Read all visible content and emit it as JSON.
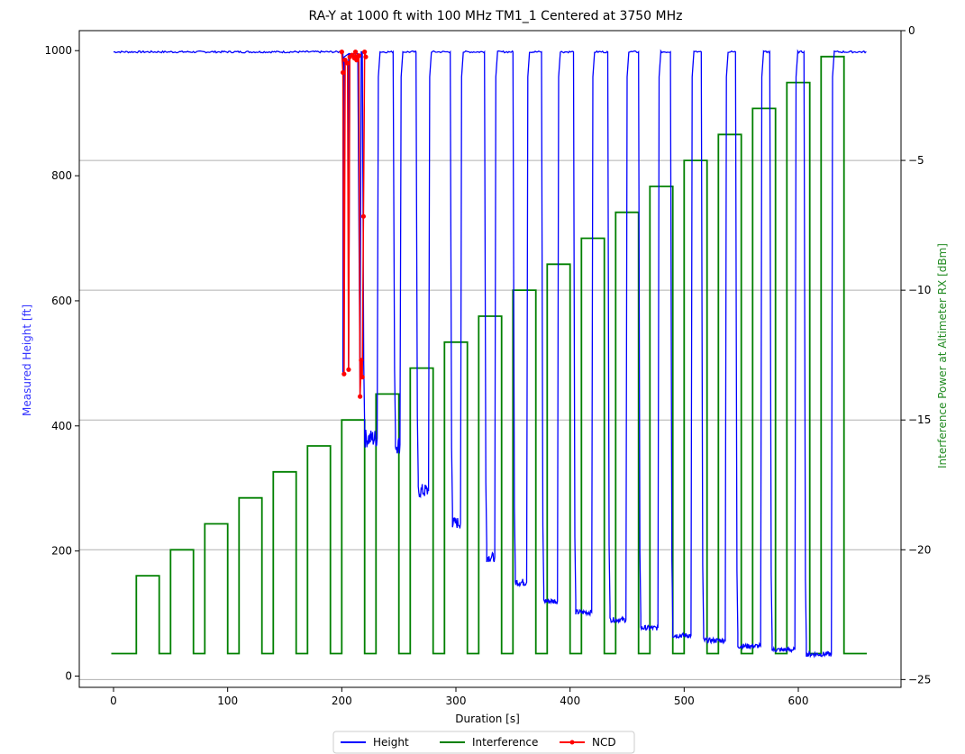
{
  "chart_data": {
    "type": "line",
    "title": "RA-Y at 1000 ft with 100 MHz TM1_1 Centered at 3750 MHz",
    "xlabel": "Duration [s]",
    "ylabel_left": "Measured Height [ft]",
    "ylabel_right": "Interference Power at Altimeter RX [dBm]",
    "xlim": [
      -30,
      690
    ],
    "ylim_left": [
      -18,
      1032
    ],
    "ylim_right": [
      -25.3,
      -0.0
    ],
    "x_ticks": [
      0,
      100,
      200,
      300,
      400,
      500,
      600
    ],
    "y_left_ticks": [
      0,
      200,
      400,
      600,
      800,
      1000
    ],
    "y_right_ticks": [
      0,
      -5,
      -10,
      -15,
      -20,
      -25
    ],
    "grid": "horizontal lines at right-axis ticks",
    "legend_position": "bottom-center, below axes",
    "colors": {
      "height": "#0000ff",
      "interference": "#008000",
      "ncd": "#ff0000",
      "left_axis_label": "#3333ff",
      "right_axis_label": "#228b22"
    },
    "series": [
      {
        "name": "Height",
        "axis": "left",
        "color": "#0000ff",
        "baseline": 998,
        "break_start": 201,
        "end": 660,
        "pulses": [
          {
            "start": 218,
            "end": 232,
            "value": 380
          },
          {
            "start": 245,
            "end": 252,
            "value": 370
          },
          {
            "start": 265,
            "end": 277,
            "value": 296
          },
          {
            "start": 295,
            "end": 305,
            "value": 245
          },
          {
            "start": 325,
            "end": 335,
            "value": 190
          },
          {
            "start": 350,
            "end": 363,
            "value": 150
          },
          {
            "start": 375,
            "end": 390,
            "value": 120
          },
          {
            "start": 403,
            "end": 420,
            "value": 102
          },
          {
            "start": 433,
            "end": 450,
            "value": 90
          },
          {
            "start": 460,
            "end": 478,
            "value": 77
          },
          {
            "start": 488,
            "end": 507,
            "value": 65
          },
          {
            "start": 515,
            "end": 537,
            "value": 57
          },
          {
            "start": 545,
            "end": 568,
            "value": 48
          },
          {
            "start": 575,
            "end": 598,
            "value": 42
          },
          {
            "start": 605,
            "end": 630,
            "value": 35
          }
        ]
      },
      {
        "name": "Interference",
        "axis": "right",
        "color": "#008000",
        "baseline": -24,
        "x_start": -2,
        "x_end": 660,
        "pulses": [
          {
            "start": 20,
            "end": 40,
            "value": -21
          },
          {
            "start": 50,
            "end": 70,
            "value": -20
          },
          {
            "start": 80,
            "end": 100,
            "value": -19
          },
          {
            "start": 110,
            "end": 130,
            "value": -18
          },
          {
            "start": 140,
            "end": 160,
            "value": -17
          },
          {
            "start": 170,
            "end": 190,
            "value": -16
          },
          {
            "start": 200,
            "end": 220,
            "value": -15
          },
          {
            "start": 230,
            "end": 250,
            "value": -14
          },
          {
            "start": 260,
            "end": 280,
            "value": -13
          },
          {
            "start": 290,
            "end": 310,
            "value": -12
          },
          {
            "start": 320,
            "end": 340,
            "value": -11
          },
          {
            "start": 350,
            "end": 370,
            "value": -10
          },
          {
            "start": 380,
            "end": 400,
            "value": -9
          },
          {
            "start": 410,
            "end": 430,
            "value": -8
          },
          {
            "start": 440,
            "end": 460,
            "value": -7
          },
          {
            "start": 470,
            "end": 490,
            "value": -6
          },
          {
            "start": 500,
            "end": 520,
            "value": -5
          },
          {
            "start": 530,
            "end": 550,
            "value": -4
          },
          {
            "start": 560,
            "end": 580,
            "value": -3
          },
          {
            "start": 590,
            "end": 610,
            "value": -2
          },
          {
            "start": 620,
            "end": 640,
            "value": -1
          }
        ]
      },
      {
        "name": "NCD",
        "axis": "left",
        "color": "#ff0000",
        "points": [
          {
            "x": 200,
            "y": 998
          },
          {
            "x": 201,
            "y": 965
          },
          {
            "x": 202,
            "y": 483
          },
          {
            "x": 203,
            "y": 985
          },
          {
            "x": 205,
            "y": 980
          },
          {
            "x": 206,
            "y": 490
          },
          {
            "x": 207,
            "y": 990
          },
          {
            "x": 209,
            "y": 993
          },
          {
            "x": 211,
            "y": 988
          },
          {
            "x": 212,
            "y": 998
          },
          {
            "x": 213,
            "y": 985
          },
          {
            "x": 214,
            "y": 990
          },
          {
            "x": 215,
            "y": 992
          },
          {
            "x": 216,
            "y": 447
          },
          {
            "x": 217,
            "y": 505
          },
          {
            "x": 218,
            "y": 478
          },
          {
            "x": 219,
            "y": 735
          },
          {
            "x": 220,
            "y": 998
          },
          {
            "x": 221,
            "y": 990
          }
        ]
      }
    ]
  }
}
